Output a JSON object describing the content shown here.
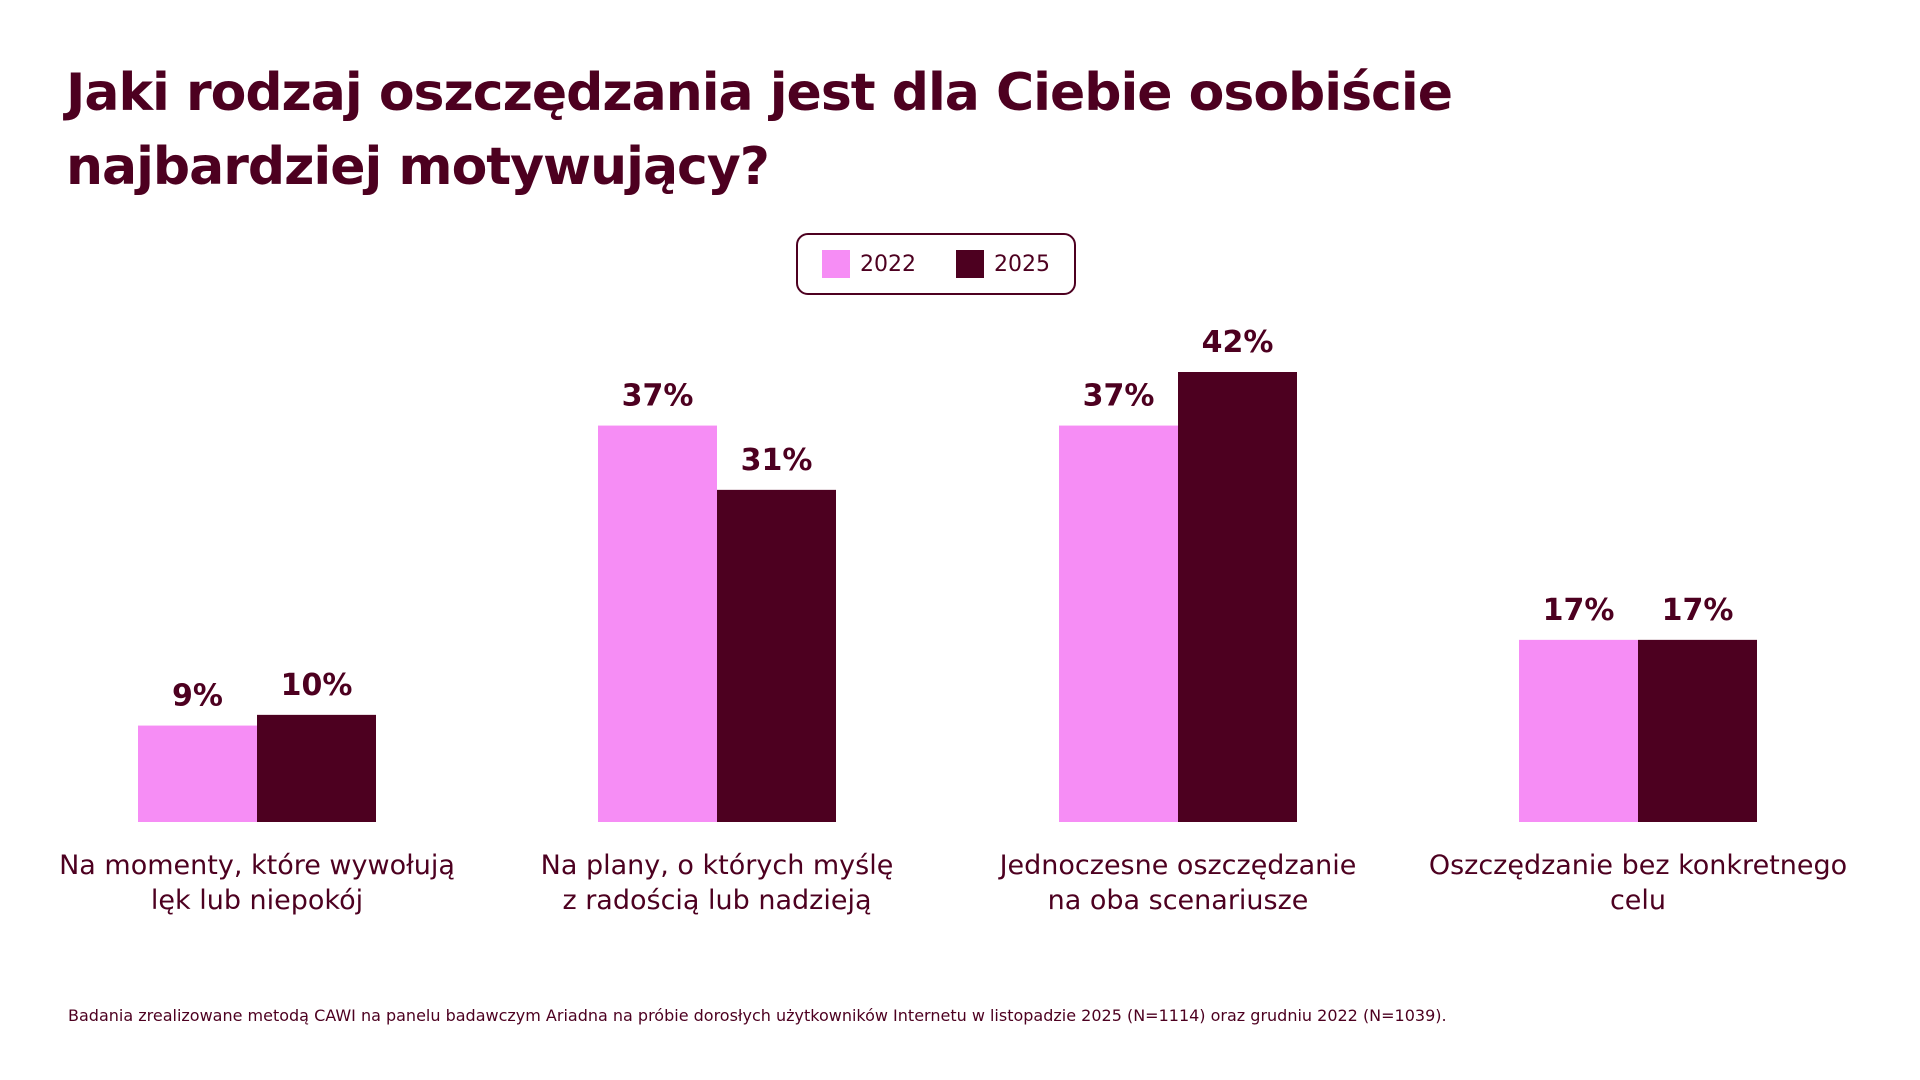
{
  "chart_data": {
    "type": "bar",
    "title": "Jaki rodzaj oszczędzania jest dla Ciebie osobiście najbardziej motywujący?",
    "categories": [
      [
        "Na momenty, które wywołują",
        "lęk lub niepokój"
      ],
      [
        "Na plany, o których myślę",
        "z radością lub nadzieją"
      ],
      [
        "Jednoczesne oszczędzanie",
        "na oba scenariusze"
      ],
      [
        "Oszczędzanie bez konkretnego celu"
      ]
    ],
    "series": [
      {
        "name": "2022",
        "color": "#f68df5",
        "values": [
          9,
          37,
          37,
          17
        ],
        "labels": [
          "9%",
          "37%",
          "37%",
          "17%"
        ]
      },
      {
        "name": "2025",
        "color": "#4d0020",
        "values": [
          10,
          31,
          42,
          17
        ],
        "labels": [
          "10%",
          "31%",
          "42%",
          "17%"
        ]
      }
    ],
    "unit": "%",
    "ylim": [
      0,
      42
    ],
    "legend_position": "top-center",
    "grid": false
  },
  "footnote": "Badania zrealizowane metodą CAWI na panelu badawczym Ariadna na próbie dorosłych użytkowników Internetu w listopadzie 2025 (N=1114) oraz grudniu 2022 (N=1039)."
}
